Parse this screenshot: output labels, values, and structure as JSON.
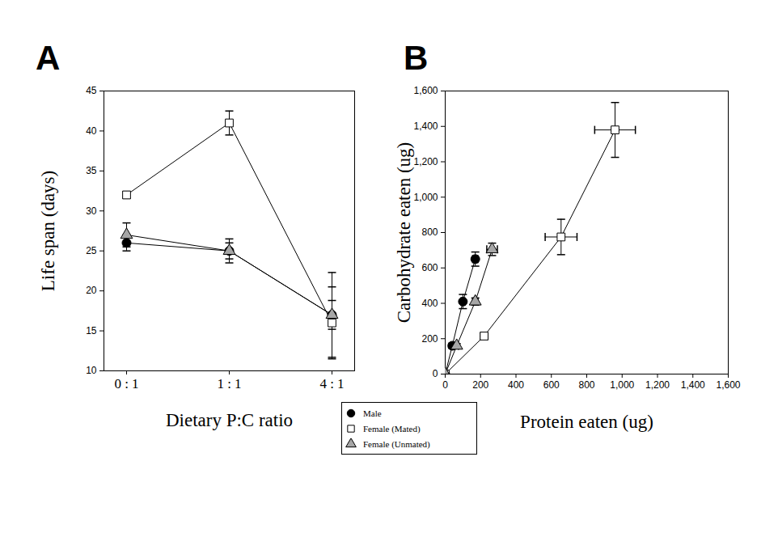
{
  "chart_data": [
    {
      "type": "line",
      "title": "A",
      "x_label": "Dietary P:C ratio",
      "y_label": "Life span (days)",
      "categories": [
        "0 : 1",
        "1 : 1",
        "4 : 1"
      ],
      "ylim": [
        10,
        45
      ],
      "yticks": [
        10,
        15,
        20,
        25,
        30,
        35,
        40,
        45
      ],
      "legend": "bottom",
      "series": [
        {
          "name": "Male",
          "color": "#000000",
          "marker": "circle",
          "values": [
            26,
            25,
            17
          ],
          "errors": [
            1.0,
            1.0,
            1.8
          ]
        },
        {
          "name": "Female (Mated)",
          "color": "#ffffff",
          "marker": "square",
          "values": [
            32,
            41,
            16
          ],
          "errors": [
            0.4,
            1.5,
            4.5
          ]
        },
        {
          "name": "Female (Unmated)",
          "color": "#a6a6a6",
          "marker": "triangle",
          "values": [
            27,
            25,
            17
          ],
          "errors": [
            1.5,
            1.5,
            5.3
          ]
        }
      ]
    },
    {
      "type": "scatter",
      "title": "B",
      "x_label": "Protein eaten (ug)",
      "y_label": "Carbohydrate eaten (ug)",
      "xlim": [
        0,
        1600
      ],
      "xticks": [
        0,
        200,
        400,
        600,
        800,
        1000,
        1200,
        1400,
        1600
      ],
      "ylim": [
        0,
        1600
      ],
      "yticks": [
        0,
        200,
        400,
        600,
        800,
        1000,
        1200,
        1400,
        1600
      ],
      "legend": "bottom",
      "series": [
        {
          "name": "Male",
          "color": "#000000",
          "marker": "circle",
          "line_style": "solid",
          "x": [
            0,
            40,
            100,
            170
          ],
          "values": [
            0,
            160,
            410,
            650
          ],
          "x_errors": [
            null,
            8,
            12,
            15
          ],
          "y_errors": [
            null,
            15,
            40,
            40
          ]
        },
        {
          "name": "Female (Mated)",
          "color": "#ffffff",
          "marker": "square",
          "line_style": "solid",
          "x": [
            0,
            220,
            655,
            960
          ],
          "values": [
            0,
            215,
            775,
            1380
          ],
          "x_errors": [
            null,
            20,
            90,
            115
          ],
          "y_errors": [
            null,
            15,
            100,
            155
          ]
        },
        {
          "name": "Female (Unmated)",
          "color": "#a6a6a6",
          "marker": "triangle",
          "line_style": "solid",
          "x": [
            0,
            65,
            170,
            265
          ],
          "values": [
            0,
            160,
            410,
            705
          ],
          "x_errors": [
            null,
            10,
            15,
            30
          ],
          "y_errors": [
            null,
            12,
            20,
            35
          ]
        }
      ]
    }
  ]
}
